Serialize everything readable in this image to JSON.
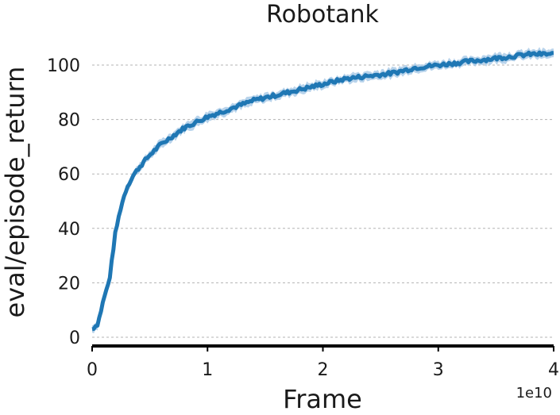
{
  "chart_data": {
    "type": "line",
    "title": "Robotank",
    "xlabel": "Frame",
    "ylabel": "eval/episode_return",
    "x_offset_label": "1e10",
    "xlim": [
      0,
      4
    ],
    "ylim": [
      0,
      105
    ],
    "xticks": [
      0,
      1,
      2,
      3,
      4
    ],
    "xtick_labels": [
      "0",
      "1",
      "2",
      "3",
      "4"
    ],
    "yticks": [
      0,
      20,
      40,
      60,
      80,
      100
    ],
    "ytick_labels": [
      "0",
      "20",
      "40",
      "60",
      "80",
      "100"
    ],
    "grid": "horizontal dashed",
    "line_color": "#1f77b4",
    "band_color": "#a6c8e6",
    "series": [
      {
        "x": [
          0.0,
          0.05,
          0.1,
          0.15,
          0.2,
          0.25,
          0.3,
          0.35,
          0.4,
          0.5,
          0.6,
          0.7,
          0.8,
          0.9,
          1.0,
          1.2,
          1.4,
          1.6,
          1.8,
          2.0,
          2.2,
          2.4,
          2.6,
          2.8,
          3.0,
          3.2,
          3.4,
          3.6,
          3.8,
          4.0
        ],
        "y": [
          3,
          5,
          14,
          21,
          38,
          48,
          55,
          59,
          62,
          67,
          71,
          74,
          77,
          79,
          81,
          84,
          87,
          89,
          91,
          93,
          95,
          96,
          97,
          99,
          100,
          101,
          102,
          103,
          104,
          104
        ]
      }
    ]
  }
}
